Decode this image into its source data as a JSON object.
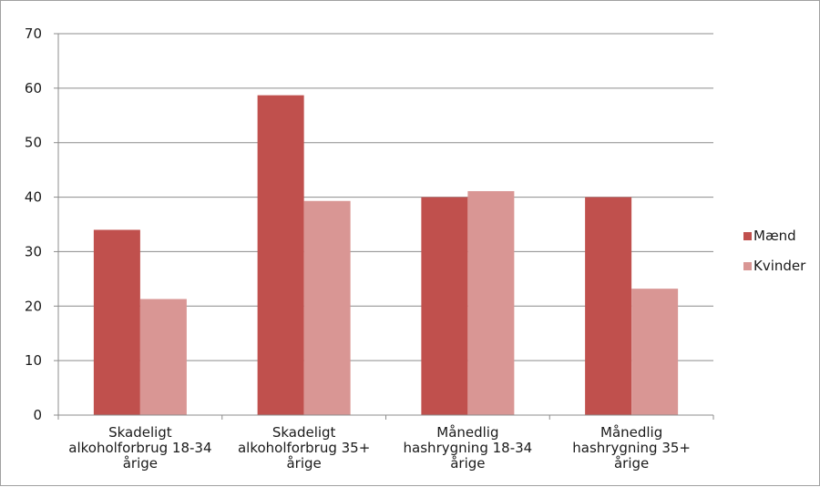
{
  "chart_data": {
    "type": "bar",
    "categories": [
      [
        "Skadeligt",
        "alkoholforbrug 18-34",
        "årige"
      ],
      [
        "Skadeligt",
        "alkoholforbrug 35+",
        "årige"
      ],
      [
        "Månedlig",
        "hashrygning 18-34",
        "årige"
      ],
      [
        "Månedlig",
        "hashrygning 35+",
        "årige"
      ]
    ],
    "series": [
      {
        "name": "Mænd",
        "values": [
          34,
          58.7,
          40,
          40
        ],
        "color": "#c0504d"
      },
      {
        "name": "Kvinder",
        "values": [
          21.3,
          39.3,
          41.1,
          23.2
        ],
        "color": "#d99694"
      }
    ],
    "ylim": [
      0,
      70
    ],
    "yticks": [
      0,
      10,
      20,
      30,
      40,
      50,
      60,
      70
    ],
    "grid": true,
    "legend_position": "right",
    "title": "",
    "xlabel": "",
    "ylabel": ""
  }
}
